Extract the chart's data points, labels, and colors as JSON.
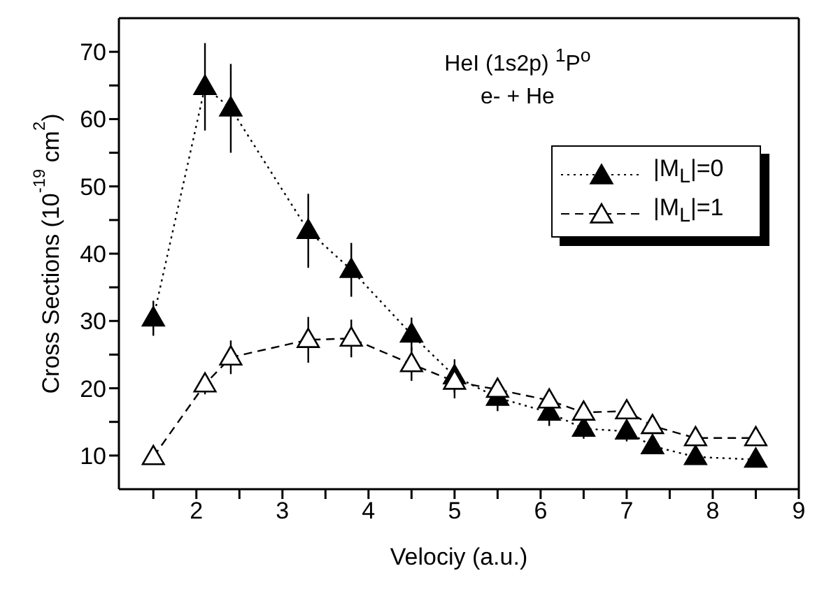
{
  "chart_data": {
    "type": "line",
    "xlabel": "Velociy (a.u.)",
    "ylabel": "Cross Sections (10$^{-19}$ cm$^{2}$)",
    "annotations": [
      "HeI (1s2p) $^{1}$P$^{o}$",
      "e- + He"
    ],
    "x": [
      1.5,
      2.1,
      2.4,
      3.3,
      3.8,
      4.5,
      5,
      5.5,
      6.1,
      6.5,
      7,
      7.3,
      7.8,
      8.5
    ],
    "series": [
      {
        "name": "|M$_{L}$|=0",
        "color": "#000000",
        "line_style": "dotted",
        "marker": "triangle",
        "values": [
          30.4,
          64.8,
          61.6,
          43.4,
          37.6,
          28,
          21.8,
          18.6,
          16.4,
          14,
          13.6,
          11.4,
          9.8,
          9.4
        ],
        "errors": [
          2.6,
          6.5,
          6.6,
          5.5,
          4,
          2.5,
          2.5,
          2,
          2,
          1.5,
          1.5,
          1,
          1,
          1
        ]
      },
      {
        "name": "|M$_{L}$|=1",
        "color": "#000000",
        "line_style": "dashed",
        "marker": "triangle",
        "values": [
          9.8,
          20.6,
          24.6,
          27.2,
          27.4,
          23.6,
          21,
          19.8,
          18.2,
          16.4,
          16.6,
          14.4,
          12.6,
          12.6
        ],
        "errors": [
          null,
          1.5,
          2.5,
          3.4,
          2.8,
          2.5,
          2.5,
          1.5,
          1,
          1,
          1,
          1,
          1,
          1
        ]
      }
    ],
    "xlim": [
      1.1,
      9
    ],
    "xticks": [
      {
        "value": 1.5,
        "label": null
      },
      2,
      {
        "value": 2.5,
        "label": null
      },
      3,
      {
        "value": 3.5,
        "label": null
      },
      4,
      {
        "value": 4.5,
        "label": null
      },
      5,
      {
        "value": 5.5,
        "label": null
      },
      6,
      {
        "value": 6.5,
        "label": null
      },
      7,
      {
        "value": 7.5,
        "label": null
      },
      8,
      {
        "value": 8.5,
        "label": null
      },
      9
    ],
    "ylim": [
      5,
      75
    ],
    "yticks": [
      10,
      {
        "value": 15,
        "label": null
      },
      20,
      {
        "value": 25,
        "label": null
      },
      30,
      {
        "value": 35,
        "label": null
      },
      40,
      {
        "value": 45,
        "label": null
      },
      50,
      {
        "value": 55,
        "label": null
      },
      60,
      {
        "value": 65,
        "label": null
      },
      70
    ],
    "grid": false,
    "legend": "top right"
  }
}
